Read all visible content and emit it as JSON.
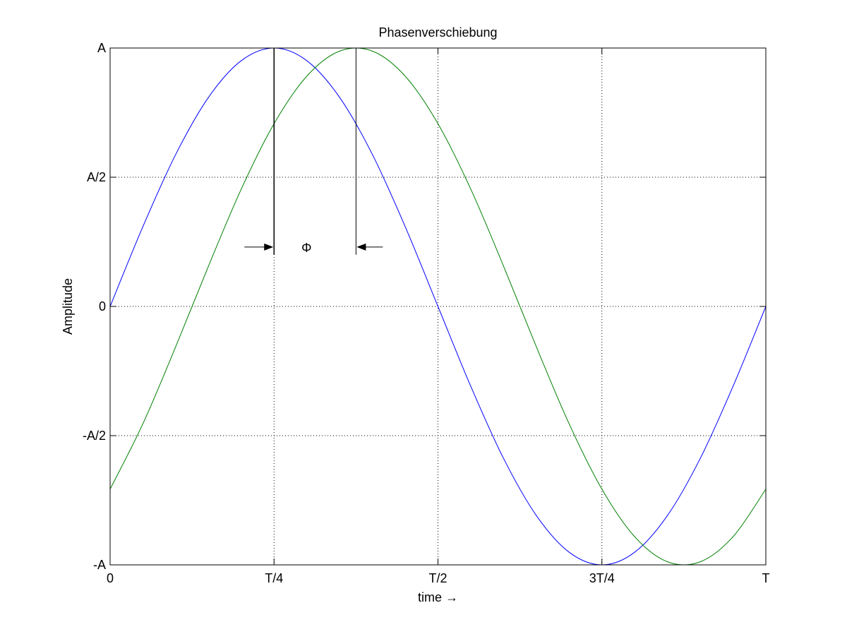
{
  "chart_data": {
    "type": "line",
    "title": "Phasenverschiebung",
    "xlabel": "time →",
    "ylabel": "Amplitude",
    "x_range": [
      0,
      1
    ],
    "y_range": [
      -1,
      1
    ],
    "x_ticks": [
      {
        "value": 0,
        "label": "0"
      },
      {
        "value": 0.25,
        "label": "T/4"
      },
      {
        "value": 0.5,
        "label": "T/2"
      },
      {
        "value": 0.75,
        "label": "3T/4"
      },
      {
        "value": 1,
        "label": "T"
      }
    ],
    "y_ticks": [
      {
        "value": -1,
        "label": "-A"
      },
      {
        "value": -0.5,
        "label": "-A/2"
      },
      {
        "value": 0,
        "label": "0"
      },
      {
        "value": 0.5,
        "label": "A/2"
      },
      {
        "value": 1,
        "label": "A"
      }
    ],
    "grid": true,
    "grid_style": "dotted",
    "series": [
      {
        "color": "#0000ff",
        "x": [
          0,
          0.05,
          0.1,
          0.15,
          0.2,
          0.25,
          0.3,
          0.35,
          0.4,
          0.45,
          0.5,
          0.55,
          0.6,
          0.65,
          0.7,
          0.75,
          0.8,
          0.85,
          0.9,
          0.95,
          1
        ],
        "y": [
          0,
          0.309,
          0.588,
          0.809,
          0.951,
          1,
          0.951,
          0.809,
          0.588,
          0.309,
          0,
          -0.309,
          -0.588,
          -0.809,
          -0.951,
          -1,
          -0.951,
          -0.809,
          -0.588,
          -0.309,
          0
        ]
      },
      {
        "color": "#008000",
        "x": [
          0,
          0.05,
          0.1,
          0.15,
          0.2,
          0.25,
          0.3,
          0.35,
          0.4,
          0.45,
          0.5,
          0.55,
          0.6,
          0.65,
          0.7,
          0.75,
          0.8,
          0.85,
          0.9,
          0.95,
          1
        ],
        "y": [
          -0.707,
          -0.454,
          -0.156,
          0.156,
          0.454,
          0.707,
          0.891,
          0.988,
          0.988,
          0.891,
          0.707,
          0.454,
          0.156,
          -0.156,
          -0.454,
          -0.707,
          -0.891,
          -0.988,
          -0.988,
          -0.891,
          -0.707
        ]
      }
    ],
    "annotations": [
      {
        "type": "phase-marker",
        "label": "Φ",
        "x_start": 0.25,
        "x_end": 0.375,
        "y": 0.23,
        "line_top": 1,
        "line_bottom": 0.2
      }
    ]
  }
}
